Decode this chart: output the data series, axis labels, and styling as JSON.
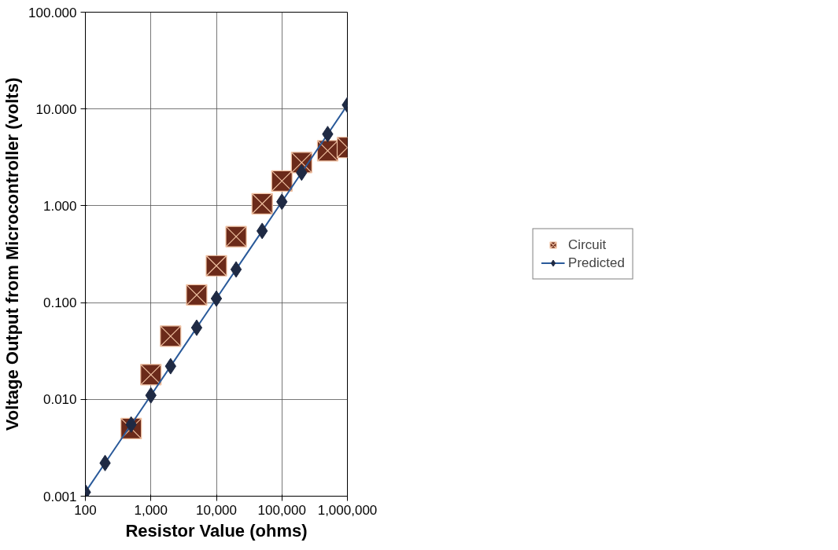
{
  "chart_data": {
    "type": "scatter",
    "xlabel": "Resistor Value (ohms)",
    "ylabel": "Voltage Output from Microcontroller (volts)",
    "log": "xy",
    "grid": true,
    "legend": "right",
    "xlim": [
      100,
      1000000
    ],
    "ylim": [
      0.001,
      100
    ],
    "xticks": [
      {
        "value": 100,
        "label": "100"
      },
      {
        "value": 1000,
        "label": "1,000"
      },
      {
        "value": 10000,
        "label": "10,000"
      },
      {
        "value": 100000,
        "label": "100,000"
      },
      {
        "value": 1000000,
        "label": "1,000,000"
      }
    ],
    "yticks": [
      {
        "value": 0.001,
        "label": "0.001"
      },
      {
        "value": 0.01,
        "label": "0.010"
      },
      {
        "value": 0.1,
        "label": "0.100"
      },
      {
        "value": 1,
        "label": "1.000"
      },
      {
        "value": 10,
        "label": "10.000"
      },
      {
        "value": 100,
        "label": "100.000"
      }
    ],
    "series": [
      {
        "name": "Circuit",
        "marker": "square",
        "color": "#6b2a1a",
        "x": [
          500,
          1000,
          2000,
          5000,
          10000,
          20000,
          50000,
          100000,
          200000,
          500000,
          1000000
        ],
        "values": [
          0.005,
          0.018,
          0.045,
          0.12,
          0.24,
          0.48,
          1.05,
          1.8,
          2.8,
          3.7,
          4.0
        ]
      },
      {
        "name": "Predicted",
        "type": "line",
        "marker": "diamond",
        "color": "#1f2a44",
        "x": [
          100,
          200,
          500,
          1000,
          2000,
          5000,
          10000,
          20000,
          50000,
          100000,
          200000,
          500000,
          1000000
        ],
        "values": [
          0.0011,
          0.0022,
          0.0055,
          0.011,
          0.022,
          0.055,
          0.11,
          0.22,
          0.55,
          1.1,
          2.2,
          5.5,
          11
        ]
      }
    ]
  }
}
